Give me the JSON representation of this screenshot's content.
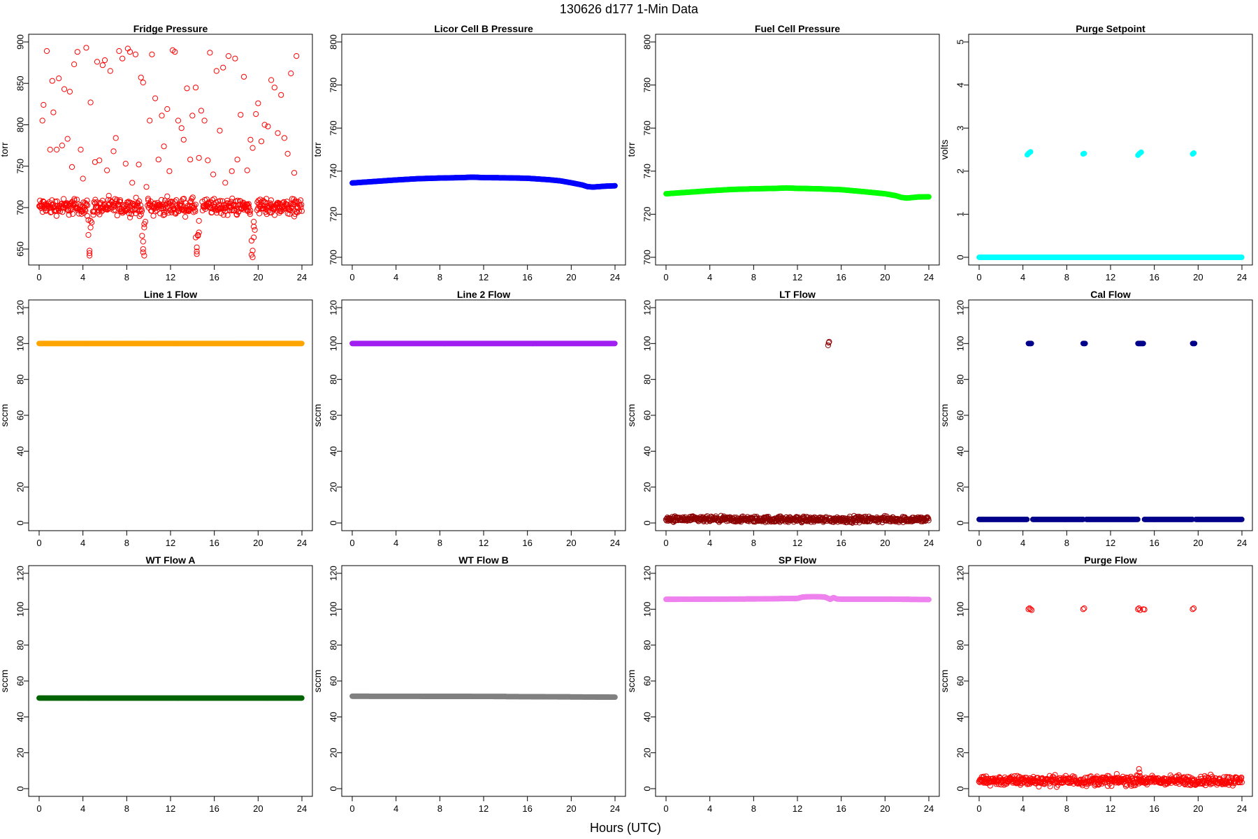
{
  "figure": {
    "title": "130626    d177    1-Min Data",
    "xlabel": "Hours (UTC)"
  },
  "chart_data": [
    {
      "type": "scatter",
      "title": "Fridge Pressure",
      "ylabel": "torr",
      "xlim": [
        0,
        24
      ],
      "ylim": [
        640,
        900
      ],
      "xticks": [
        "0",
        "4",
        "8",
        "12",
        "16",
        "20",
        "24"
      ],
      "yticks": [
        "650",
        "700",
        "750",
        "800",
        "850",
        "900"
      ],
      "color": "#ff0000",
      "marker": "open-circle",
      "series": [
        {
          "kind": "band",
          "x_start": 0,
          "x_end": 4.4,
          "center": 701,
          "spread": 9
        },
        {
          "kind": "band",
          "x_start": 4.9,
          "x_end": 9.4,
          "center": 701,
          "spread": 9
        },
        {
          "kind": "band",
          "x_start": 9.9,
          "x_end": 14.3,
          "center": 701,
          "spread": 9
        },
        {
          "kind": "band",
          "x_start": 14.9,
          "x_end": 19.3,
          "center": 701,
          "spread": 9
        },
        {
          "kind": "band",
          "x_start": 19.9,
          "x_end": 24,
          "center": 701,
          "spread": 9
        },
        {
          "kind": "points",
          "x": [
            4.4,
            4.5,
            4.5,
            4.6,
            4.6,
            4.6,
            4.7,
            4.7,
            4.8,
            9.4,
            9.5,
            9.5,
            9.5,
            9.6,
            9.6,
            9.6,
            9.7,
            14.3,
            14.4,
            14.4,
            14.4,
            14.5,
            14.5,
            14.6,
            14.6,
            19.4,
            19.4,
            19.5,
            19.5,
            19.6,
            19.6,
            19.6,
            19.7
          ],
          "y": [
            690,
            685,
            667,
            648,
            645,
            642,
            684,
            676,
            682,
            666,
            659,
            650,
            646,
            642,
            680,
            676,
            683,
            664,
            652,
            647,
            644,
            667,
            666,
            670,
            684,
            660,
            643,
            640,
            648,
            664,
            677,
            683,
            673
          ]
        },
        {
          "kind": "points",
          "x": [
            0.3,
            0.4,
            0.7,
            1.0,
            1.2,
            1.3,
            1.6,
            1.8,
            2.1,
            2.3,
            2.6,
            2.8,
            3.0,
            3.2,
            3.5,
            3.8,
            4.0,
            4.3,
            4.7,
            5.1,
            5.3,
            5.5,
            5.8,
            6.0,
            6.2,
            6.5,
            6.8,
            7.0,
            7.3,
            7.6,
            7.9,
            8.1,
            8.3,
            8.5,
            8.8,
            9.1,
            9.3,
            9.5,
            9.8,
            10.1,
            10.3,
            10.6,
            10.9,
            11.2,
            11.4,
            11.7,
            11.9,
            12.2,
            12.4,
            12.7,
            13.0,
            13.2,
            13.5,
            13.8,
            14.0,
            14.3,
            14.6,
            14.8,
            15.1,
            15.4,
            15.6,
            15.9,
            16.2,
            16.5,
            16.8,
            17.0,
            17.3,
            17.6,
            17.9,
            18.1,
            18.4,
            18.7,
            19.0,
            19.3,
            19.5,
            19.8,
            20.0,
            20.3,
            20.6,
            20.9,
            21.2,
            21.5,
            21.8,
            22.1,
            22.4,
            22.7,
            23.0,
            23.3,
            23.5
          ],
          "y": [
            805,
            824,
            889,
            770,
            853,
            815,
            770,
            856,
            775,
            843,
            783,
            840,
            749,
            873,
            888,
            770,
            735,
            893,
            827,
            755,
            876,
            757,
            872,
            878,
            745,
            865,
            768,
            784,
            889,
            880,
            753,
            892,
            888,
            730,
            885,
            752,
            857,
            851,
            725,
            805,
            885,
            832,
            758,
            811,
            774,
            819,
            744,
            890,
            888,
            805,
            796,
            782,
            844,
            758,
            811,
            845,
            760,
            817,
            805,
            757,
            887,
            740,
            865,
            793,
            869,
            730,
            883,
            744,
            880,
            758,
            812,
            858,
            745,
            782,
            772,
            813,
            826,
            780,
            800,
            798,
            854,
            845,
            790,
            836,
            784,
            765,
            862,
            742,
            883
          ]
        }
      ]
    },
    {
      "type": "scatter",
      "title": "Licor Cell B Pressure",
      "ylabel": "torr",
      "xlim": [
        0,
        24
      ],
      "ylim": [
        700,
        800
      ],
      "xticks": [
        "0",
        "4",
        "8",
        "12",
        "16",
        "20",
        "24"
      ],
      "yticks": [
        "700",
        "720",
        "740",
        "760",
        "780",
        "800"
      ],
      "color": "#0000ff",
      "marker": "filled-circle",
      "series": [
        {
          "kind": "curve",
          "x": [
            0,
            2,
            4,
            6,
            8,
            10,
            11,
            12,
            14,
            16,
            18,
            19,
            20,
            21,
            21.5,
            22,
            23,
            24
          ],
          "y": [
            734.5,
            735.2,
            735.9,
            736.5,
            736.8,
            737.0,
            737.2,
            737.0,
            736.9,
            736.7,
            736.0,
            735.5,
            734.6,
            733.6,
            732.8,
            732.6,
            733.0,
            733.2
          ]
        }
      ]
    },
    {
      "type": "scatter",
      "title": "Fuel Cell Pressure",
      "ylabel": "torr",
      "xlim": [
        0,
        24
      ],
      "ylim": [
        700,
        800
      ],
      "xticks": [
        "0",
        "4",
        "8",
        "12",
        "16",
        "20",
        "24"
      ],
      "yticks": [
        "700",
        "720",
        "740",
        "760",
        "780",
        "800"
      ],
      "color": "#00ff00",
      "marker": "filled-circle",
      "series": [
        {
          "kind": "curve",
          "x": [
            0,
            2,
            4,
            6,
            8,
            10,
            11,
            12,
            14,
            16,
            18,
            19,
            20,
            21,
            21.5,
            22,
            23,
            24
          ],
          "y": [
            729.5,
            730.2,
            730.9,
            731.5,
            731.8,
            732.0,
            732.2,
            732.0,
            731.8,
            731.4,
            730.5,
            730.0,
            729.5,
            728.6,
            727.8,
            727.5,
            728.0,
            728.1
          ]
        }
      ]
    },
    {
      "type": "scatter",
      "title": "Purge Setpoint",
      "ylabel": "volts",
      "xlim": [
        0,
        24
      ],
      "ylim": [
        0,
        5
      ],
      "xticks": [
        "0",
        "4",
        "8",
        "12",
        "16",
        "20",
        "24"
      ],
      "yticks": [
        "0",
        "1",
        "2",
        "3",
        "4",
        "5"
      ],
      "color": "#00ffff",
      "marker": "filled-circle",
      "series": [
        {
          "kind": "line",
          "x_start": 0,
          "x_end": 24,
          "y": 0
        },
        {
          "kind": "points",
          "x": [
            4.4,
            4.5,
            4.6,
            4.7,
            9.5,
            9.6,
            14.5,
            14.6,
            14.7,
            14.8,
            19.5,
            19.6
          ],
          "y": [
            2.38,
            2.41,
            2.43,
            2.45,
            2.4,
            2.41,
            2.37,
            2.4,
            2.42,
            2.44,
            2.4,
            2.42
          ]
        }
      ]
    },
    {
      "type": "scatter",
      "title": "Line 1 Flow",
      "ylabel": "sccm",
      "xlim": [
        0,
        24
      ],
      "ylim": [
        0,
        120
      ],
      "xticks": [
        "0",
        "4",
        "8",
        "12",
        "16",
        "20",
        "24"
      ],
      "yticks": [
        "0",
        "20",
        "40",
        "60",
        "80",
        "100",
        "120"
      ],
      "color": "#ffa500",
      "marker": "filled-circle",
      "series": [
        {
          "kind": "line",
          "x_start": 0,
          "x_end": 24,
          "y": 100
        }
      ]
    },
    {
      "type": "scatter",
      "title": "Line 2 Flow",
      "ylabel": "sccm",
      "xlim": [
        0,
        24
      ],
      "ylim": [
        0,
        120
      ],
      "xticks": [
        "0",
        "4",
        "8",
        "12",
        "16",
        "20",
        "24"
      ],
      "yticks": [
        "0",
        "20",
        "40",
        "60",
        "80",
        "100",
        "120"
      ],
      "color": "#a020f0",
      "marker": "filled-circle",
      "series": [
        {
          "kind": "line",
          "x_start": 0,
          "x_end": 24,
          "y": 100
        }
      ]
    },
    {
      "type": "scatter",
      "title": "LT Flow",
      "ylabel": "sccm",
      "xlim": [
        0,
        24
      ],
      "ylim": [
        0,
        120
      ],
      "xticks": [
        "0",
        "4",
        "8",
        "12",
        "16",
        "20",
        "24"
      ],
      "yticks": [
        "0",
        "20",
        "40",
        "60",
        "80",
        "100",
        "120"
      ],
      "color": "#8b0000",
      "marker": "open-circle",
      "series": [
        {
          "kind": "band",
          "x_start": 0,
          "x_end": 14.7,
          "center": 2,
          "spread": 1.5
        },
        {
          "kind": "band",
          "x_start": 14.9,
          "x_end": 24,
          "center": 2,
          "spread": 1.5
        },
        {
          "kind": "points",
          "x": [
            14.8,
            14.85,
            14.9
          ],
          "y": [
            99,
            100.5,
            101
          ]
        }
      ]
    },
    {
      "type": "scatter",
      "title": "Cal Flow",
      "ylabel": "sccm",
      "xlim": [
        0,
        24
      ],
      "ylim": [
        0,
        120
      ],
      "xticks": [
        "0",
        "4",
        "8",
        "12",
        "16",
        "20",
        "24"
      ],
      "yticks": [
        "0",
        "20",
        "40",
        "60",
        "80",
        "100",
        "120"
      ],
      "color": "#00008b",
      "marker": "filled-circle",
      "series": [
        {
          "kind": "line",
          "x_start": 0,
          "x_end": 4.4,
          "y": 2
        },
        {
          "kind": "line",
          "x_start": 4.9,
          "x_end": 9.5,
          "y": 2
        },
        {
          "kind": "line",
          "x_start": 9.8,
          "x_end": 14.5,
          "y": 2
        },
        {
          "kind": "line",
          "x_start": 15.1,
          "x_end": 19.5,
          "y": 2
        },
        {
          "kind": "line",
          "x_start": 19.8,
          "x_end": 24,
          "y": 2
        },
        {
          "kind": "line",
          "x_start": 4.5,
          "x_end": 4.8,
          "y": 100
        },
        {
          "kind": "line",
          "x_start": 9.5,
          "x_end": 9.7,
          "y": 100
        },
        {
          "kind": "line",
          "x_start": 14.5,
          "x_end": 15.0,
          "y": 100
        },
        {
          "kind": "line",
          "x_start": 19.5,
          "x_end": 19.7,
          "y": 100
        }
      ]
    },
    {
      "type": "scatter",
      "title": "WT Flow A",
      "ylabel": "sccm",
      "xlim": [
        0,
        24
      ],
      "ylim": [
        0,
        120
      ],
      "xticks": [
        "0",
        "4",
        "8",
        "12",
        "16",
        "20",
        "24"
      ],
      "yticks": [
        "0",
        "20",
        "40",
        "60",
        "80",
        "100",
        "120"
      ],
      "color": "#006400",
      "marker": "filled-circle",
      "series": [
        {
          "kind": "line",
          "x_start": 0,
          "x_end": 24,
          "y": 50.5
        }
      ]
    },
    {
      "type": "scatter",
      "title": "WT Flow B",
      "ylabel": "sccm",
      "xlim": [
        0,
        24
      ],
      "ylim": [
        0,
        120
      ],
      "xticks": [
        "0",
        "4",
        "8",
        "12",
        "16",
        "20",
        "24"
      ],
      "yticks": [
        "0",
        "20",
        "40",
        "60",
        "80",
        "100",
        "120"
      ],
      "color": "#808080",
      "marker": "filled-circle",
      "series": [
        {
          "kind": "curve",
          "x": [
            0,
            12,
            24
          ],
          "y": [
            51.5,
            51.4,
            51.0
          ]
        }
      ]
    },
    {
      "type": "scatter",
      "title": "SP Flow",
      "ylabel": "sccm",
      "xlim": [
        0,
        24
      ],
      "ylim": [
        0,
        120
      ],
      "xticks": [
        "0",
        "4",
        "8",
        "12",
        "16",
        "20",
        "24"
      ],
      "yticks": [
        "0",
        "20",
        "40",
        "60",
        "80",
        "100",
        "120"
      ],
      "color": "#ee82ee",
      "marker": "filled-circle",
      "series": [
        {
          "kind": "curve",
          "x": [
            0,
            4,
            8,
            12,
            12.5,
            13.5,
            14.5,
            15,
            15.3,
            15.6,
            16,
            20,
            24
          ],
          "y": [
            105.5,
            105.6,
            105.7,
            106.0,
            106.8,
            107.0,
            106.8,
            105.5,
            106.5,
            105.7,
            105.6,
            105.6,
            105.4
          ]
        }
      ]
    },
    {
      "type": "scatter",
      "title": "Purge Flow",
      "ylabel": "sccm",
      "xlim": [
        0,
        24
      ],
      "ylim": [
        0,
        120
      ],
      "xticks": [
        "0",
        "4",
        "8",
        "12",
        "16",
        "20",
        "24"
      ],
      "yticks": [
        "0",
        "20",
        "40",
        "60",
        "80",
        "100",
        "120"
      ],
      "color": "#ff0000",
      "marker": "open-circle",
      "series": [
        {
          "kind": "band",
          "x_start": 0,
          "x_end": 24,
          "center": 4.5,
          "spread": 2.5
        },
        {
          "kind": "points",
          "x": [
            14.6,
            14.65,
            14.7,
            14.8,
            14.9
          ],
          "y": [
            11,
            9,
            7,
            5,
            4
          ]
        },
        {
          "kind": "points",
          "x": [
            4.5,
            4.6,
            4.7,
            4.8,
            9.5,
            9.6,
            14.5,
            14.6,
            14.7,
            15.0,
            15.1,
            19.5,
            19.6
          ],
          "y": [
            100,
            100.5,
            100,
            99.5,
            100,
            100.5,
            100,
            100.5,
            99.5,
            100,
            99.8,
            100,
            100.5
          ]
        }
      ]
    }
  ]
}
